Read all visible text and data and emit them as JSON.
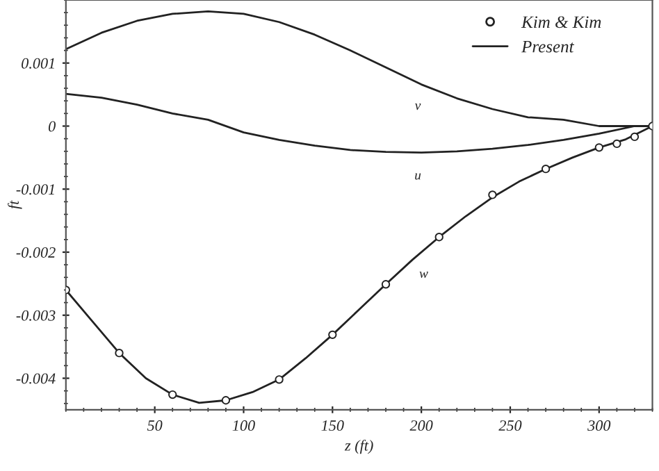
{
  "chart_data": {
    "type": "line",
    "xlabel": "z (ft)",
    "ylabel": "ft",
    "xlim": [
      0,
      330
    ],
    "ylim": [
      -0.0045,
      0.002
    ],
    "xticks": [
      50,
      100,
      150,
      200,
      250,
      300
    ],
    "yticks": [
      -0.004,
      -0.003,
      -0.002,
      -0.001,
      0,
      0.001
    ],
    "grid": false,
    "legend": "top right",
    "marker": "none",
    "line_style": "solid",
    "annotations": [
      "v",
      "u",
      "w"
    ],
    "series": [
      {
        "name": "Present",
        "color": "#222222",
        "x": [
          0,
          20,
          40,
          60,
          80,
          100,
          120,
          140,
          160,
          180,
          200,
          220,
          240,
          260,
          280,
          300,
          330
        ],
        "values": [
          0.00122,
          0.00148,
          0.00167,
          0.00178,
          0.00182,
          0.00178,
          0.00165,
          0.00145,
          0.0012,
          0.00093,
          0.00066,
          0.00044,
          0.00027,
          0.00014,
          0.0001,
          0,
          0
        ]
      },
      {
        "color": "#222222",
        "x": [
          0,
          20,
          40,
          60,
          80,
          100,
          120,
          140,
          160,
          180,
          200,
          220,
          240,
          260,
          280,
          300,
          320,
          330
        ],
        "values": [
          0.00051,
          0.00045,
          0.00034,
          0.0002,
          0.0001,
          -0.0001,
          -0.00022,
          -0.00031,
          -0.00038,
          -0.00041,
          -0.00042,
          -0.0004,
          -0.00036,
          -0.0003,
          -0.00022,
          -0.00012,
          0,
          0
        ]
      },
      {
        "color": "#222222",
        "x": [
          0,
          15,
          30,
          45,
          60,
          75,
          90,
          105,
          120,
          135,
          150,
          165,
          180,
          195,
          210,
          225,
          240,
          255,
          270,
          285,
          300,
          315,
          330
        ],
        "values": [
          -0.0026,
          -0.0031,
          -0.0036,
          -0.004,
          -0.00426,
          -0.00439,
          -0.00435,
          -0.00422,
          -0.00402,
          -0.00368,
          -0.00331,
          -0.00291,
          -0.00251,
          -0.00212,
          -0.00176,
          -0.00143,
          -0.00113,
          -0.00088,
          -0.00068,
          -0.0005,
          -0.00034,
          -0.00021,
          0
        ]
      },
      {
        "name": "Kim & Kim",
        "type": "scatter",
        "marker": "circle",
        "color": "#222222",
        "x": [
          0,
          30,
          60,
          90,
          120,
          150,
          180,
          210,
          240,
          270,
          300,
          310,
          320,
          330
        ],
        "values": [
          -0.0026,
          -0.0036,
          -0.00426,
          -0.00435,
          -0.00402,
          -0.00331,
          -0.00251,
          -0.00176,
          -0.00109,
          -0.00068,
          -0.00034,
          -0.00028,
          -0.00017,
          0
        ]
      }
    ]
  }
}
